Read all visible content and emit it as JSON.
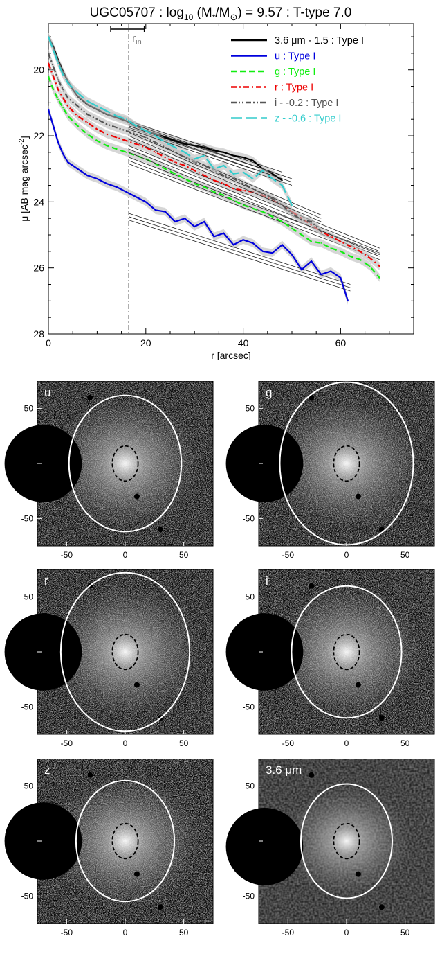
{
  "chart_data": [
    {
      "type": "line",
      "title": "UGC05707 : log10 (M*/M⊙) = 9.57 : T-type 7.0",
      "title_parts": {
        "main": "UGC05707 : log",
        "sub": "10",
        "rest_a": " (M",
        "star": "*",
        "slash": "/M",
        "sun": "⊙",
        "rest_b": ") = 9.57 : T-type 7.0"
      },
      "xlabel": "r [arcsec]",
      "ylabel": "μ [AB mag arcsec⁻²]",
      "ylabel_parts": {
        "main": "μ [AB mag arcsec",
        "sup": "-2",
        "end": "]"
      },
      "xlim": [
        0,
        75
      ],
      "ylim": [
        28,
        18.6
      ],
      "y_inverted": true,
      "xticks": [
        0,
        20,
        40,
        60
      ],
      "yticks": [
        20,
        22,
        24,
        26,
        28
      ],
      "r_in": 16.5,
      "r_in_label": "r",
      "r_in_sub": "in",
      "r_in_error": [
        12.8,
        19.7
      ],
      "legend_position": "top-right",
      "series": [
        {
          "name": "3.6 μm - 1.5 : Type I",
          "color": "#000000",
          "style": "solid",
          "x": [
            0,
            1,
            2,
            3,
            4,
            5,
            6,
            8,
            10,
            12,
            14,
            16,
            18,
            20,
            22,
            24,
            26,
            28,
            30,
            32,
            34,
            36,
            38,
            40,
            42,
            44,
            46,
            48
          ],
          "y": [
            19.0,
            19.3,
            19.7,
            20.05,
            20.35,
            20.6,
            20.8,
            21.05,
            21.2,
            21.35,
            21.45,
            21.55,
            21.7,
            21.85,
            21.95,
            22.05,
            22.15,
            22.25,
            22.3,
            22.35,
            22.45,
            22.5,
            22.6,
            22.65,
            22.75,
            23.0,
            23.15,
            23.35
          ],
          "fit": {
            "x": [
              16.5,
              48
            ],
            "y": [
              21.65,
              23.2
            ]
          }
        },
        {
          "name": "u : Type I",
          "color": "#0000dd",
          "style": "solid",
          "x": [
            0,
            1,
            2,
            3,
            4,
            6,
            8,
            10,
            12,
            14,
            16,
            18,
            20,
            22,
            24,
            26,
            28,
            30,
            32,
            34,
            36,
            38,
            40,
            42,
            44,
            46,
            48,
            50,
            52,
            54,
            56,
            58,
            60,
            61.5
          ],
          "y": [
            21.2,
            21.7,
            22.2,
            22.55,
            22.8,
            23.0,
            23.2,
            23.3,
            23.45,
            23.55,
            23.7,
            23.85,
            24.0,
            24.25,
            24.3,
            24.6,
            24.5,
            24.75,
            24.6,
            25.05,
            24.95,
            25.3,
            25.15,
            25.25,
            25.5,
            25.55,
            25.3,
            25.6,
            26.05,
            25.8,
            26.2,
            26.1,
            26.3,
            27.0
          ],
          "fit": {
            "x": [
              16.5,
              62
            ],
            "y": [
              24.45,
              26.6
            ]
          }
        },
        {
          "name": "g : Type I",
          "color": "#11ee11",
          "style": "dashed",
          "x": [
            0,
            1,
            2,
            3,
            4,
            6,
            8,
            10,
            12,
            14,
            16,
            18,
            20,
            22,
            24,
            26,
            28,
            30,
            32,
            34,
            36,
            38,
            40,
            42,
            44,
            46,
            48,
            50,
            52,
            54,
            56,
            58,
            60,
            62,
            64,
            66,
            68
          ],
          "y": [
            20.2,
            20.6,
            20.9,
            21.15,
            21.4,
            21.7,
            21.95,
            22.15,
            22.3,
            22.4,
            22.5,
            22.6,
            22.7,
            22.85,
            23.0,
            23.15,
            23.3,
            23.45,
            23.55,
            23.7,
            23.8,
            23.95,
            24.1,
            24.2,
            24.3,
            24.45,
            24.6,
            24.8,
            25.0,
            25.2,
            25.25,
            25.4,
            25.5,
            25.65,
            25.75,
            25.95,
            26.3
          ],
          "fit": {
            "x": [
              16.5,
              68
            ],
            "y": [
              22.75,
              25.65
            ]
          }
        },
        {
          "name": "r : Type I",
          "color": "#ee0000",
          "style": "dashdot",
          "x": [
            0,
            1,
            2,
            3,
            4,
            6,
            8,
            10,
            12,
            14,
            16,
            18,
            20,
            22,
            24,
            26,
            28,
            30,
            32,
            34,
            36,
            38,
            40,
            42,
            44,
            46,
            48,
            50,
            52,
            54,
            56,
            58,
            60,
            62,
            64,
            66,
            68
          ],
          "y": [
            19.8,
            20.2,
            20.6,
            20.85,
            21.1,
            21.4,
            21.6,
            21.8,
            21.95,
            22.05,
            22.15,
            22.25,
            22.35,
            22.5,
            22.65,
            22.8,
            22.9,
            23.05,
            23.2,
            23.35,
            23.45,
            23.6,
            23.65,
            23.7,
            23.8,
            23.95,
            24.1,
            24.3,
            24.5,
            24.7,
            24.9,
            25.05,
            25.2,
            25.35,
            25.5,
            25.7,
            25.95
          ],
          "fit": {
            "x": [
              16.5,
              68
            ],
            "y": [
              22.4,
              25.5
            ]
          }
        },
        {
          "name": "i - -0.2 : Type I",
          "color": "#555555",
          "style": "dashdotdot",
          "x": [
            0,
            1,
            2,
            3,
            4,
            6,
            8,
            10,
            12,
            14,
            16,
            18,
            20,
            22,
            24,
            26,
            28,
            30,
            32,
            34,
            36,
            38,
            40,
            42,
            44,
            46,
            48,
            50,
            52,
            54,
            56
          ],
          "y": [
            19.5,
            19.9,
            20.3,
            20.6,
            20.85,
            21.1,
            21.35,
            21.5,
            21.65,
            21.75,
            21.85,
            21.95,
            22.05,
            22.2,
            22.35,
            22.5,
            22.65,
            22.8,
            22.9,
            23.05,
            23.2,
            23.3,
            23.45,
            23.6,
            23.75,
            23.9,
            24.1,
            24.35,
            24.55,
            24.6,
            24.9
          ],
          "fit": {
            "x": [
              16.5,
              56
            ],
            "y": [
              22.0,
              24.5
            ]
          }
        },
        {
          "name": "z - -0.6 : Type I",
          "color": "#33cccc",
          "style": "longdash",
          "x": [
            0,
            1,
            2,
            3,
            4,
            6,
            8,
            10,
            12,
            14,
            16,
            18,
            20,
            22,
            24,
            26,
            28,
            30,
            32,
            34,
            36,
            38,
            40,
            42,
            44,
            46,
            48,
            50
          ],
          "y": [
            19.0,
            19.4,
            19.8,
            20.15,
            20.4,
            20.7,
            20.95,
            21.1,
            21.25,
            21.4,
            21.5,
            21.7,
            21.85,
            22.0,
            22.2,
            22.35,
            22.5,
            22.7,
            22.6,
            23.0,
            22.9,
            23.15,
            23.1,
            23.3,
            23.05,
            23.3,
            23.5,
            24.1
          ],
          "fit": {
            "x": [
              16.5,
              50
            ],
            "y": [
              21.7,
              23.4
            ]
          }
        }
      ]
    },
    {
      "type": "image-grid",
      "panels": [
        {
          "label": "u",
          "ellipse": {
            "cx": 0,
            "cy": 0,
            "a": 48,
            "b": 62
          },
          "inner": {
            "a": 11,
            "b": 16
          },
          "mask_circle": true
        },
        {
          "label": "g",
          "ellipse": {
            "cx": 0,
            "cy": 0,
            "a": 57,
            "b": 74
          },
          "inner": {
            "a": 11,
            "b": 16
          },
          "mask_circle": true
        },
        {
          "label": "r",
          "ellipse": {
            "cx": 0,
            "cy": 0,
            "a": 55,
            "b": 72
          },
          "inner": {
            "a": 11,
            "b": 16
          },
          "mask_circle": true
        },
        {
          "label": "i",
          "ellipse": {
            "cx": 0,
            "cy": 0,
            "a": 47,
            "b": 60
          },
          "inner": {
            "a": 11,
            "b": 16
          },
          "mask_circle": true
        },
        {
          "label": "z",
          "ellipse": {
            "cx": 0,
            "cy": 0,
            "a": 42,
            "b": 55
          },
          "inner": {
            "a": 11,
            "b": 16
          },
          "mask_circle": true
        },
        {
          "label": "3.6 μm",
          "ellipse": {
            "cx": 0,
            "cy": 0,
            "a": 39,
            "b": 52
          },
          "inner": {
            "a": 11,
            "b": 16
          },
          "mask_circle": true
        }
      ],
      "xticks": [
        -50,
        0,
        50
      ],
      "yticks": [
        50,
        0,
        -50
      ],
      "range": [
        -75,
        75
      ]
    }
  ]
}
